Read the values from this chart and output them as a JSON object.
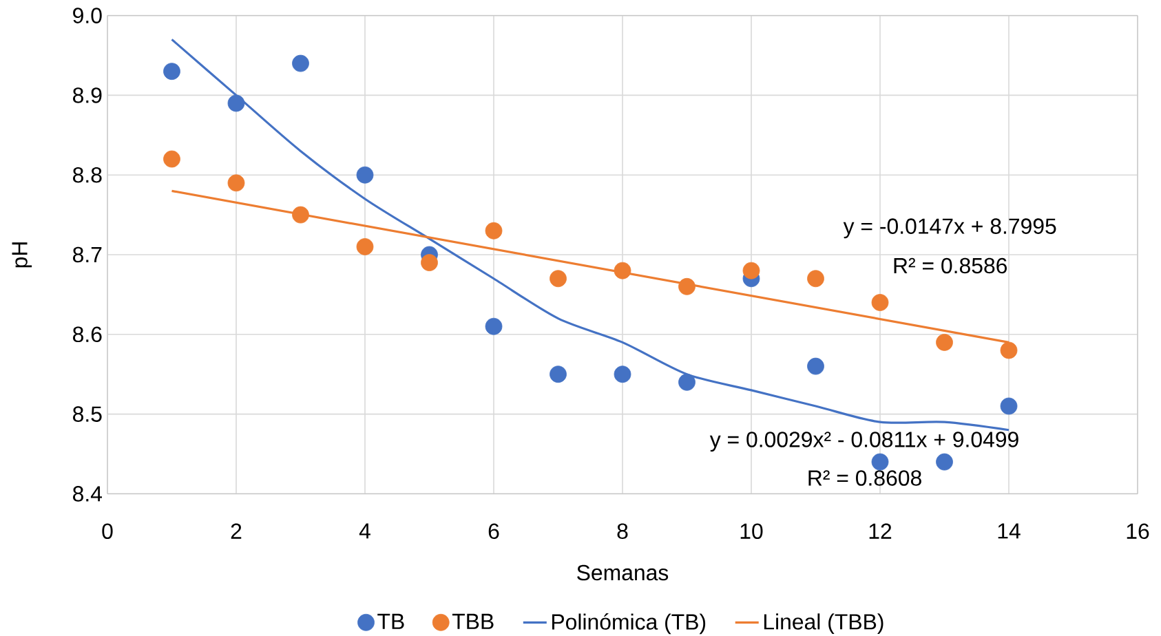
{
  "chart_data": {
    "type": "scatter",
    "xlabel": "Semanas",
    "ylabel": "pH",
    "x": [
      1,
      2,
      3,
      4,
      5,
      6,
      7,
      8,
      9,
      10,
      11,
      12,
      13,
      14
    ],
    "series": [
      {
        "name": "TB",
        "color": "#4472c4",
        "marker": "circle",
        "values": [
          8.93,
          8.89,
          8.94,
          8.8,
          8.7,
          8.61,
          8.55,
          8.55,
          8.54,
          8.67,
          8.56,
          8.44,
          8.44,
          8.51
        ]
      },
      {
        "name": "TBB",
        "color": "#ed7d31",
        "marker": "circle",
        "values": [
          8.82,
          8.79,
          8.75,
          8.71,
          8.69,
          8.73,
          8.67,
          8.68,
          8.66,
          8.68,
          8.67,
          8.64,
          8.59,
          8.58
        ]
      },
      {
        "name": "Polinómica (TB)",
        "type": "line",
        "color": "#4472c4",
        "x": [
          1,
          2,
          3,
          4,
          5,
          6,
          7,
          8,
          9,
          10,
          11,
          12,
          13,
          14
        ],
        "values": [
          8.97,
          8.9,
          8.83,
          8.77,
          8.72,
          8.67,
          8.62,
          8.59,
          8.55,
          8.53,
          8.51,
          8.49,
          8.49,
          8.48
        ]
      },
      {
        "name": "Lineal (TBB)",
        "type": "line",
        "color": "#ed7d31",
        "x": [
          1,
          14
        ],
        "values": [
          8.78,
          8.59
        ]
      }
    ],
    "xlim": [
      0,
      16
    ],
    "xticks": [
      0,
      2,
      4,
      6,
      8,
      10,
      12,
      14,
      16
    ],
    "ylim": [
      8.4,
      9.0
    ],
    "yticks": [
      8.4,
      8.5,
      8.6,
      8.7,
      8.8,
      {
        "value": 8.9,
        "label": "8.9"
      },
      {
        "value": 9.0,
        "label": "9.0"
      }
    ],
    "grid": true,
    "legend": "bottom",
    "annotations": [
      "y = -0.0147x + 8.7995",
      "R² = 0.8586",
      "y = 0.0029x² - 0.0811x + 9.0499",
      "R² = 0.8608"
    ]
  }
}
